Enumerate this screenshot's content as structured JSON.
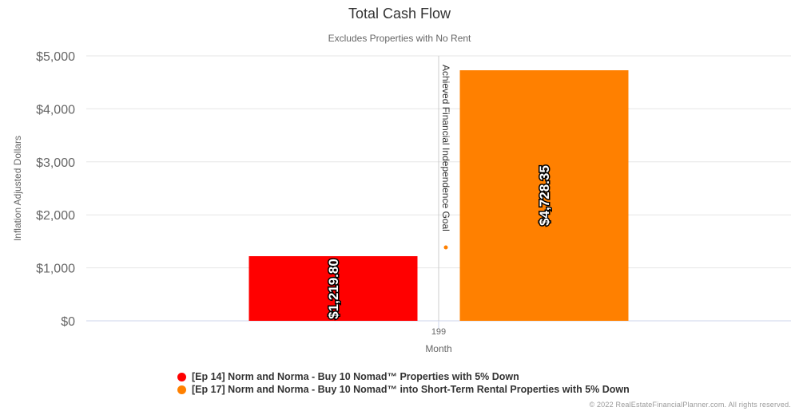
{
  "chart_data": {
    "type": "bar",
    "title": "Total Cash Flow",
    "subtitle": "Excludes Properties with No Rent",
    "xlabel": "Month",
    "ylabel": "Inflation Adjusted Dollars",
    "categories": [
      "199"
    ],
    "ylim": [
      0,
      5000
    ],
    "yticks": [
      "$0",
      "$1,000",
      "$2,000",
      "$3,000",
      "$4,000",
      "$5,000"
    ],
    "grid": true,
    "legend_position": "bottom",
    "series": [
      {
        "name": "[Ep 14] Norm and Norma - Buy 10 Nomad™ Properties with 5% Down",
        "values": [
          1219.8
        ],
        "label": "$1,219.80",
        "color": "#ff0000"
      },
      {
        "name": "[Ep 17] Norm and Norma - Buy 10 Nomad™ into Short-Term Rental Properties with 5% Down",
        "values": [
          4728.35
        ],
        "label": "$4,728.35",
        "color": "#ff8000"
      }
    ],
    "annotation": {
      "text": "Achieved Financial Independence Goal",
      "marker_color": "#ff8000"
    }
  },
  "credit": "© 2022 RealEstateFinancialPlanner.com. All rights reserved."
}
